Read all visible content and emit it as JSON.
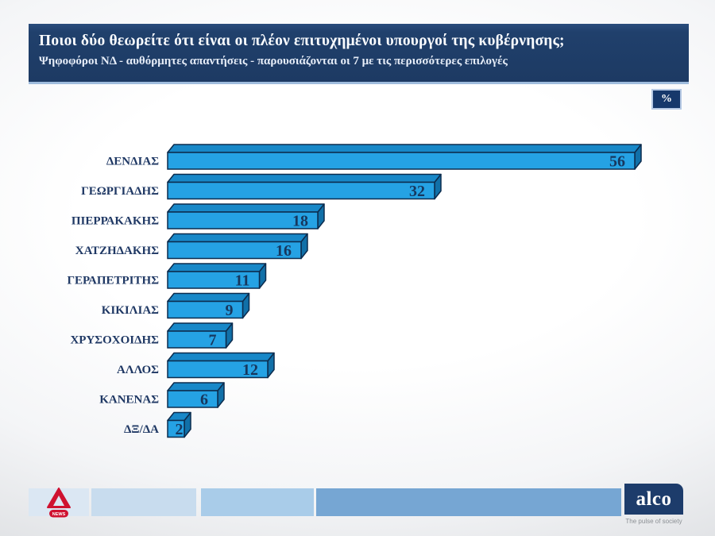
{
  "header": {
    "title": "Ποιοι δύο θεωρείτε ότι είναι οι πλέον επιτυχημένοι υπουργοί της κυβέρνησης;",
    "subtitle": "Ψηφοφόροι ΝΔ - αυθόρμητες απαντήσεις - παρουσιάζονται οι 7 με τις περισσότερες επιλογές"
  },
  "unit_badge": "%",
  "chart_data": {
    "type": "bar",
    "orientation": "horizontal",
    "style": "3d",
    "title": "Ποιοι δύο θεωρείτε ότι είναι οι πλέον επιτυχημένοι υπουργοί της κυβέρνησης;",
    "unit": "%",
    "categories": [
      "ΔΕΝΔΙΑΣ",
      "ΓΕΩΡΓΙΑΔΗΣ",
      "ΠΙΕΡΡΑΚΑΚΗΣ",
      "ΧΑΤΖΗΔΑΚΗΣ",
      "ΓΕΡΑΠΕΤΡΙΤΗΣ",
      "ΚΙΚΙΛΙΑΣ",
      "ΧΡΥΣΟΧΟΙΔΗΣ",
      "ΑΛΛΟΣ",
      "ΚΑΝΕΝΑΣ",
      "ΔΞ/ΔΑ"
    ],
    "values": [
      56,
      32,
      18,
      16,
      11,
      9,
      7,
      12,
      6,
      2
    ],
    "xlim": [
      0,
      60
    ],
    "grid": false,
    "legend": false,
    "value_labels": "inside-end",
    "bar_color": "#25a2e4",
    "bar_top_color": "#1888c8",
    "bar_side_color": "#1170a8",
    "bar_outline": "#0c2c4e",
    "label_color": "#1f3864",
    "value_color": "#17375e"
  },
  "footer": {
    "alpha_news_label": "NEWS",
    "alpha_red": "#cf1230",
    "alco_label": "alco",
    "alco_tagline": "The pulse of society",
    "alco_navy": "#1d3c6b",
    "segment_colors": [
      "#dbe7f3",
      "#c8dcee",
      "#a9cce9",
      "#76a6d3"
    ]
  }
}
